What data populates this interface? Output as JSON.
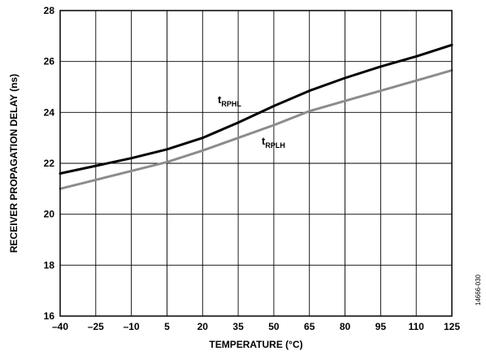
{
  "chart_data": {
    "type": "line",
    "xlabel": "TEMPERATURE (°C)",
    "ylabel": "RECEIVER PROPAGATION DELAY (ns)",
    "xlim": [
      -40,
      125
    ],
    "ylim": [
      16,
      28
    ],
    "x_ticks": [
      -40,
      -25,
      -10,
      5,
      20,
      35,
      50,
      65,
      80,
      95,
      110,
      125
    ],
    "x_tick_labels": [
      "–40",
      "–25",
      "–10",
      "5",
      "20",
      "35",
      "50",
      "65",
      "80",
      "95",
      "110",
      "125"
    ],
    "y_ticks": [
      16,
      18,
      20,
      22,
      24,
      26,
      28
    ],
    "y_tick_labels": [
      "16",
      "18",
      "20",
      "22",
      "24",
      "26",
      "28"
    ],
    "grid": true,
    "legend": "none",
    "series": [
      {
        "name_main": "t",
        "name_sub": "RPHL",
        "color": "#000000",
        "x": [
          -40,
          -25,
          -10,
          5,
          20,
          35,
          50,
          65,
          80,
          95,
          110,
          125
        ],
        "y": [
          21.6,
          21.9,
          22.2,
          22.55,
          23.0,
          23.6,
          24.25,
          24.85,
          25.35,
          25.8,
          26.2,
          26.65
        ]
      },
      {
        "name_main": "t",
        "name_sub": "RPLH",
        "color": "#8c8c8c",
        "x": [
          -40,
          -25,
          -10,
          5,
          20,
          35,
          50,
          65,
          80,
          95,
          110,
          125
        ],
        "y": [
          21.0,
          21.35,
          21.7,
          22.05,
          22.5,
          23.0,
          23.5,
          24.05,
          24.45,
          24.85,
          25.25,
          25.65
        ]
      }
    ],
    "figure_id": "14666-030"
  }
}
